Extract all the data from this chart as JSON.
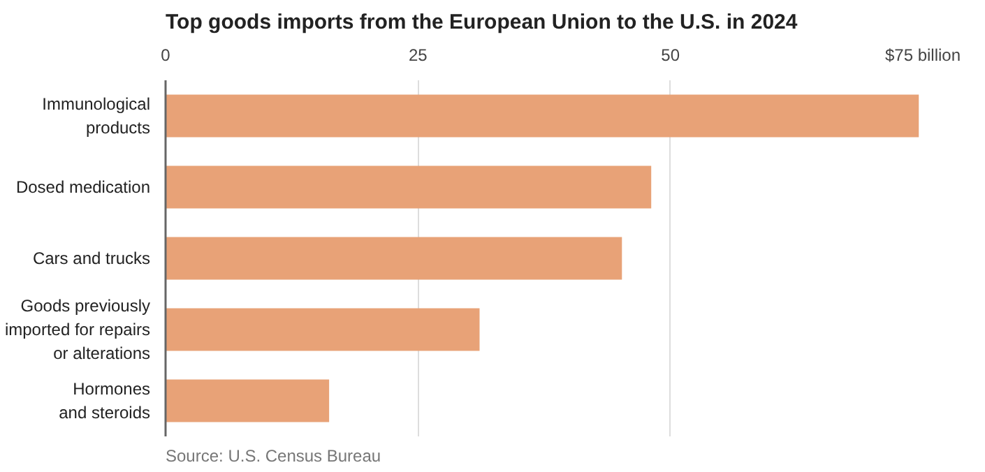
{
  "chart_data": {
    "type": "bar",
    "orientation": "horizontal",
    "title": "Top goods imports from the European Union to the U.S. in 2024",
    "categories": [
      "Immunological\nproducts",
      "Dosed medication",
      "Cars and trucks",
      "Goods previously\nimported for repairs\nor alterations",
      "Hormones\nand steroids"
    ],
    "values": [
      74.6,
      48.1,
      45.2,
      31.1,
      16.2
    ],
    "color": "#e8a277",
    "xlim": [
      0,
      75
    ],
    "xticks": [
      0,
      25,
      50,
      {
        "value": 75,
        "label": "$75 billion"
      }
    ],
    "grid": "x",
    "annotations": [
      "Source: U.S. Census Bureau"
    ]
  }
}
